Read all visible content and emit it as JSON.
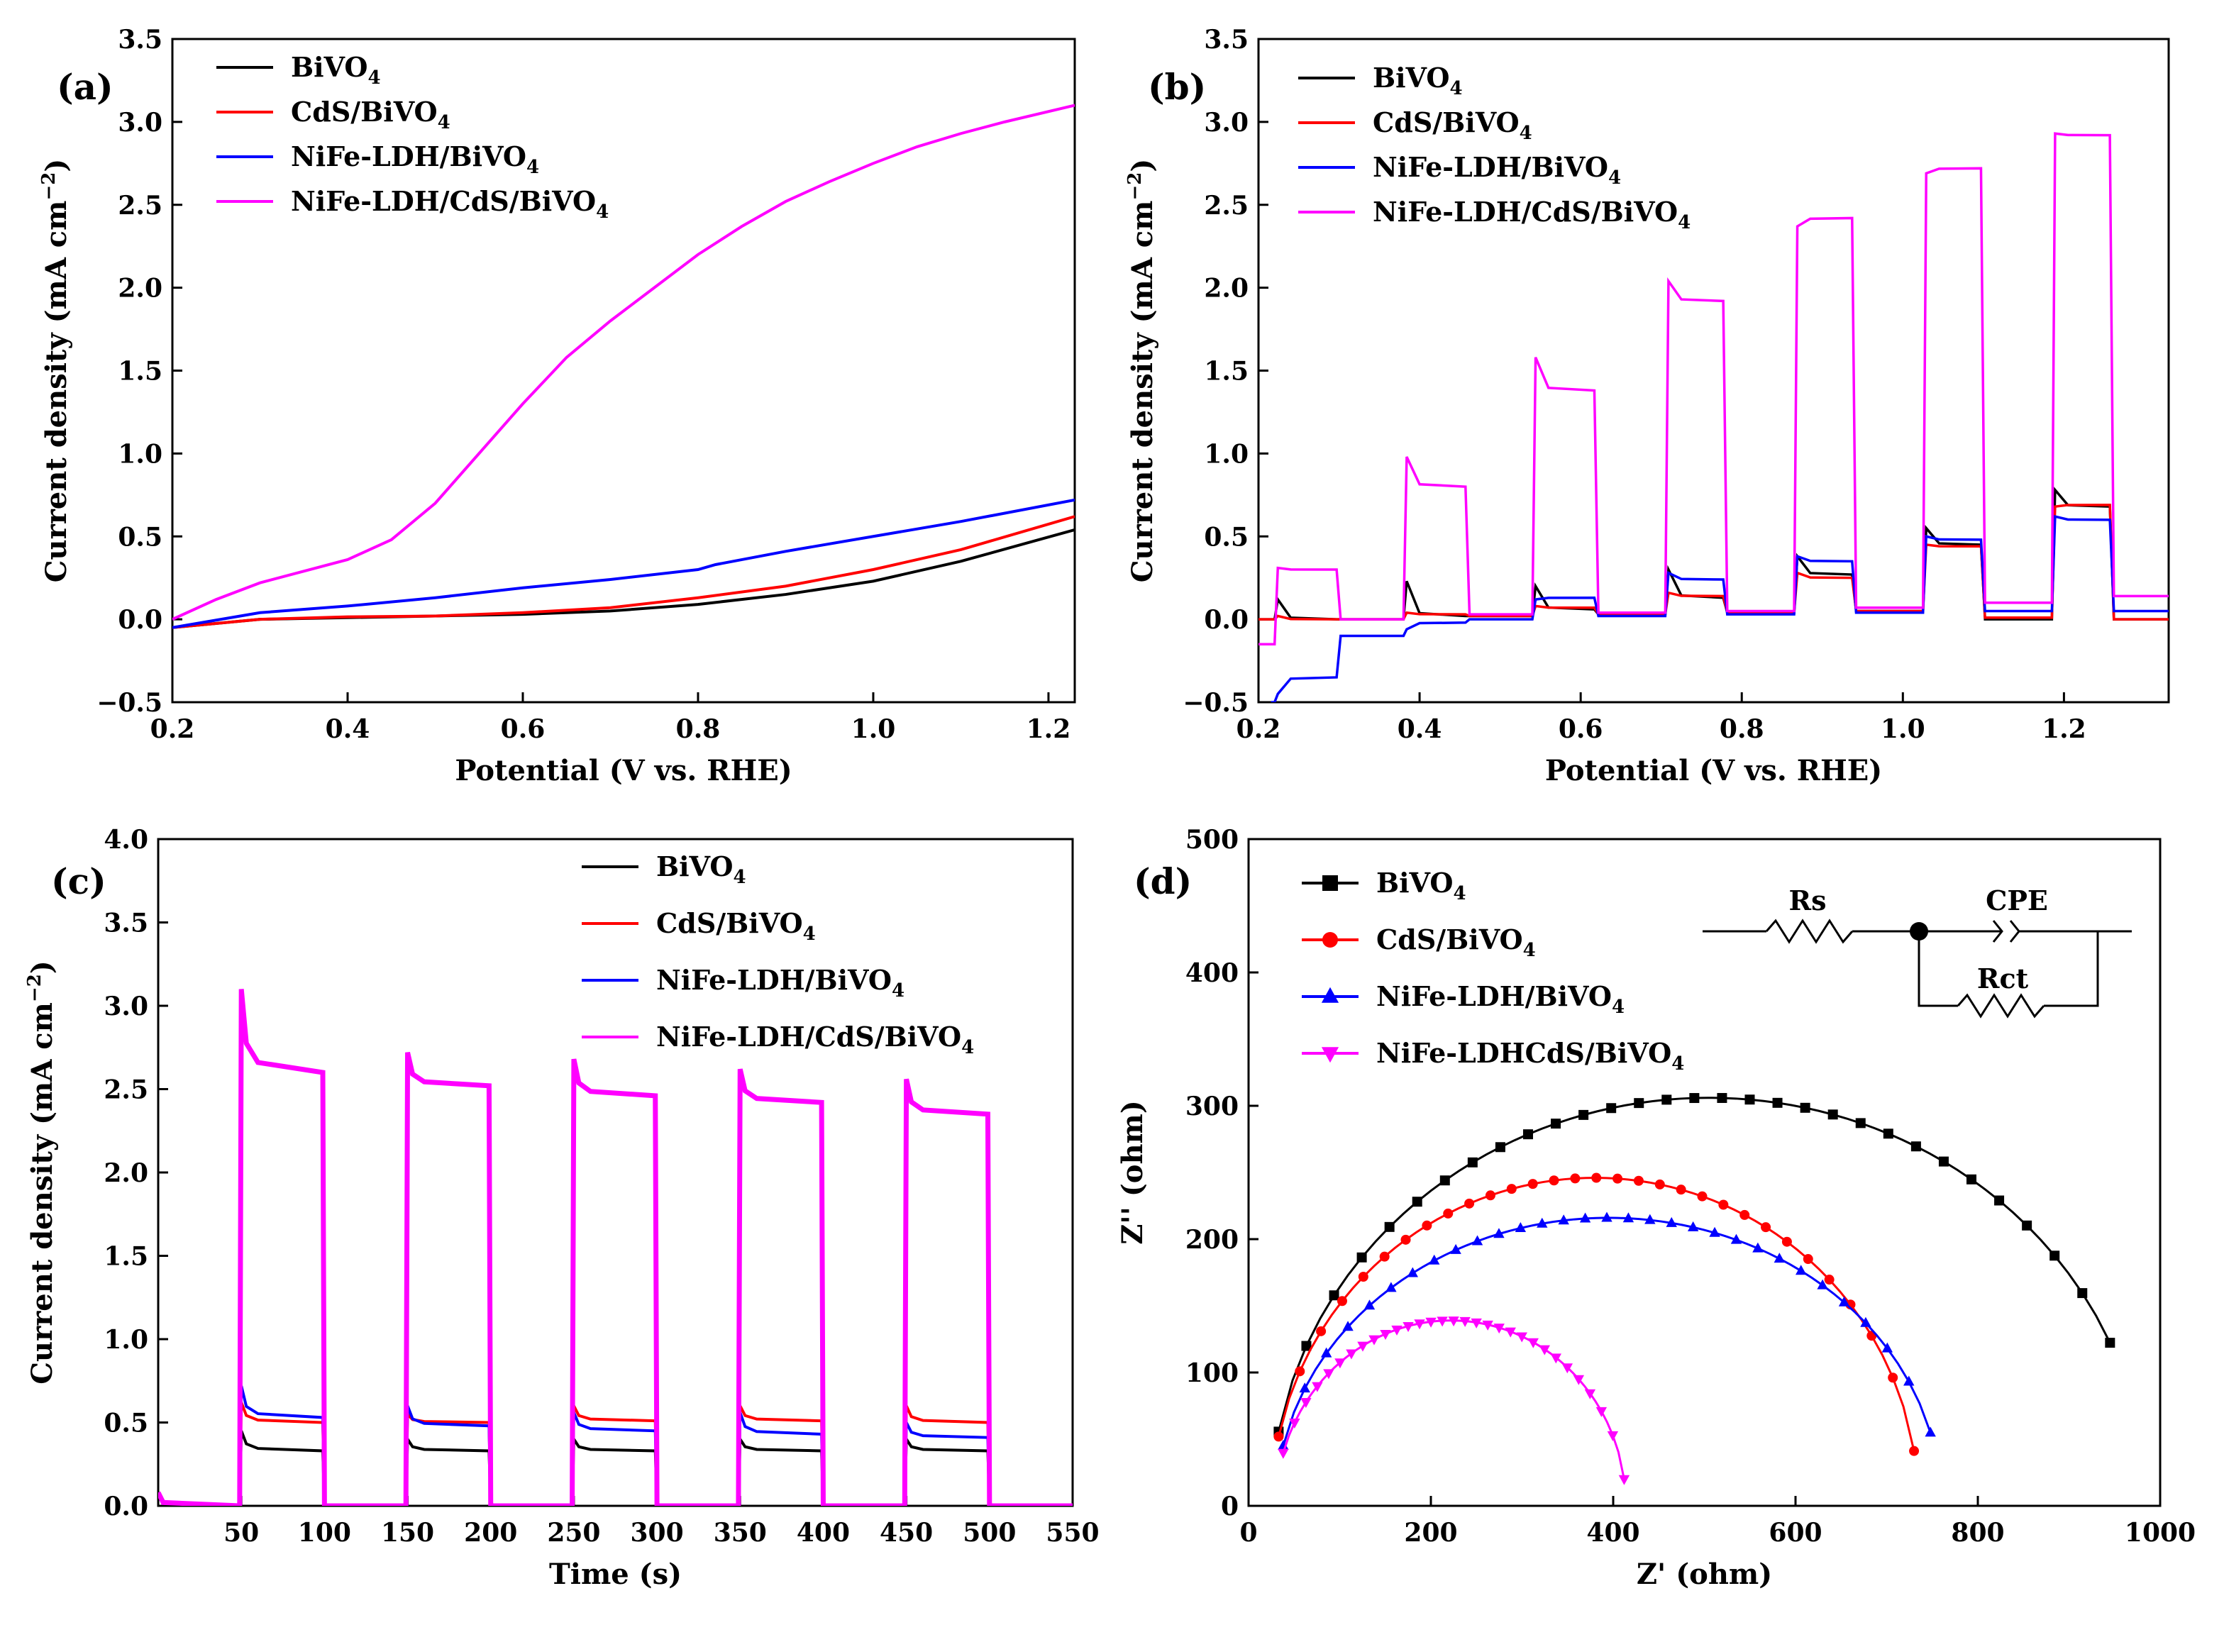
{
  "chart_data": [
    {
      "id": "a",
      "panel_label": "(a)",
      "type": "line",
      "xlabel": "Potential (V vs. RHE)",
      "ylabel": "Current density (mA cm−2)",
      "ylabel_main": "Current density (mA cm",
      "ylabel_sup": "−2",
      "ylabel_close": ")",
      "xlim": [
        0.2,
        1.23
      ],
      "ylim": [
        -0.5,
        3.5
      ],
      "xticks": [
        0.2,
        0.4,
        0.6,
        0.8,
        1.0,
        1.2
      ],
      "xtick_labels": [
        "0.2",
        "0.4",
        "0.6",
        "0.8",
        "1.0",
        "1.2"
      ],
      "yticks": [
        -0.5,
        0.0,
        0.5,
        1.0,
        1.5,
        2.0,
        2.5,
        3.0,
        3.5
      ],
      "ytick_labels": [
        "−0.5",
        "0.0",
        "0.5",
        "1.0",
        "1.5",
        "2.0",
        "2.5",
        "3.0",
        "3.5"
      ],
      "series": [
        {
          "name": "BiVO4",
          "color": "#000000",
          "x": [
            0.2,
            0.3,
            0.4,
            0.5,
            0.6,
            0.7,
            0.8,
            0.9,
            1.0,
            1.1,
            1.23
          ],
          "y": [
            -0.05,
            0.0,
            0.01,
            0.02,
            0.03,
            0.05,
            0.09,
            0.15,
            0.23,
            0.35,
            0.54
          ]
        },
        {
          "name": "CdS/BiVO4",
          "color": "#ff0000",
          "x": [
            0.2,
            0.3,
            0.4,
            0.5,
            0.6,
            0.7,
            0.8,
            0.9,
            1.0,
            1.1,
            1.23
          ],
          "y": [
            -0.05,
            0.0,
            0.015,
            0.02,
            0.04,
            0.07,
            0.13,
            0.2,
            0.3,
            0.42,
            0.62
          ]
        },
        {
          "name": "NiFe-LDH/BiVO4",
          "color": "#0000ff",
          "x": [
            0.2,
            0.3,
            0.4,
            0.5,
            0.6,
            0.7,
            0.8,
            0.82,
            0.9,
            1.0,
            1.1,
            1.23
          ],
          "y": [
            -0.05,
            0.04,
            0.08,
            0.13,
            0.19,
            0.24,
            0.3,
            0.33,
            0.41,
            0.5,
            0.59,
            0.72
          ]
        },
        {
          "name": "NiFe-LDH/CdS/BiVO4",
          "color": "#ff00ff",
          "x": [
            0.2,
            0.25,
            0.3,
            0.35,
            0.4,
            0.45,
            0.5,
            0.55,
            0.6,
            0.65,
            0.7,
            0.75,
            0.8,
            0.85,
            0.9,
            0.95,
            1.0,
            1.05,
            1.1,
            1.15,
            1.23
          ],
          "y": [
            0.0,
            0.12,
            0.22,
            0.29,
            0.36,
            0.48,
            0.7,
            1.0,
            1.3,
            1.58,
            1.8,
            2.0,
            2.2,
            2.37,
            2.52,
            2.64,
            2.75,
            2.85,
            2.93,
            3.0,
            3.1
          ]
        }
      ]
    },
    {
      "id": "b",
      "panel_label": "(b)",
      "type": "line",
      "xlabel": "Potential (V vs. RHE)",
      "ylabel": "Current density (mA cm−2)",
      "ylabel_main": "Current density (mA cm",
      "ylabel_sup": "−2",
      "ylabel_close": ")",
      "xlim": [
        0.2,
        1.33
      ],
      "ylim": [
        -0.5,
        3.5
      ],
      "xticks": [
        0.2,
        0.4,
        0.6,
        0.8,
        1.0,
        1.2
      ],
      "xtick_labels": [
        "0.2",
        "0.4",
        "0.6",
        "0.8",
        "1.0",
        "1.2"
      ],
      "yticks": [
        -0.5,
        0.0,
        0.5,
        1.0,
        1.5,
        2.0,
        2.5,
        3.0,
        3.5
      ],
      "ytick_labels": [
        "−0.5",
        "0.0",
        "0.5",
        "1.0",
        "1.5",
        "2.0",
        "2.5",
        "3.0",
        "3.5"
      ],
      "chopped": {
        "light_on": [
          0.22,
          0.38,
          0.54,
          0.705,
          0.865,
          1.025,
          1.185
        ],
        "light_off": [
          0.3,
          0.46,
          0.62,
          0.78,
          0.94,
          1.1,
          1.26
        ],
        "series": [
          {
            "name": "BiVO4",
            "color": "#000000",
            "dark": [
              0.0,
              0.0,
              0.02,
              0.03,
              0.04,
              0.05,
              0.0
            ],
            "spike": [
              0.12,
              0.23,
              0.2,
              0.3,
              0.38,
              0.55,
              0.78
            ],
            "plateau": [
              0.0,
              0.02,
              0.06,
              0.13,
              0.27,
              0.45,
              0.68
            ],
            "end": 0.0
          },
          {
            "name": "CdS/BiVO4",
            "color": "#ff0000",
            "dark": [
              0.0,
              0.0,
              0.02,
              0.03,
              0.04,
              0.05,
              0.01
            ],
            "spike": [
              0.02,
              0.04,
              0.08,
              0.16,
              0.28,
              0.45,
              0.68
            ],
            "plateau": [
              0.0,
              0.03,
              0.07,
              0.14,
              0.25,
              0.44,
              0.69
            ],
            "end": 0.0
          },
          {
            "name": "NiFe-LDH/BiVO4",
            "color": "#0000ff",
            "dark": [
              -0.5,
              -0.1,
              0.0,
              0.02,
              0.03,
              0.04,
              0.05
            ],
            "spike": [
              -0.45,
              -0.06,
              0.12,
              0.28,
              0.38,
              0.5,
              0.62
            ],
            "plateau": [
              -0.35,
              -0.02,
              0.13,
              0.24,
              0.35,
              0.48,
              0.6
            ],
            "end": 0.05
          },
          {
            "name": "NiFe-LDH/CdS/BiVO4",
            "color": "#ff00ff",
            "dark": [
              -0.15,
              0.0,
              0.03,
              0.04,
              0.05,
              0.07,
              0.1
            ],
            "spike": [
              0.31,
              0.98,
              1.58,
              2.04,
              2.37,
              2.69,
              2.93
            ],
            "plateau": [
              0.3,
              0.8,
              1.38,
              1.92,
              2.42,
              2.72,
              2.92
            ],
            "end": 0.14
          }
        ]
      }
    },
    {
      "id": "c",
      "panel_label": "(c)",
      "type": "line",
      "xlabel": "Time (s)",
      "ylabel": "Current density (mA cm−2)",
      "ylabel_main": "Current density (mA cm",
      "ylabel_sup": "−2",
      "ylabel_close": ")",
      "xlim": [
        0,
        550
      ],
      "ylim": [
        0.0,
        4.0
      ],
      "xticks": [
        50,
        100,
        150,
        200,
        250,
        300,
        350,
        400,
        450,
        500,
        550
      ],
      "xtick_labels": [
        "50",
        "100",
        "150",
        "200",
        "250",
        "300",
        "350",
        "400",
        "450",
        "500",
        "550"
      ],
      "yticks": [
        0.0,
        0.5,
        1.0,
        1.5,
        2.0,
        2.5,
        3.0,
        3.5,
        4.0
      ],
      "ytick_labels": [
        "0.0",
        "0.5",
        "1.0",
        "1.5",
        "2.0",
        "2.5",
        "3.0",
        "3.5",
        "4.0"
      ],
      "chopped": {
        "light_on": [
          50,
          150,
          250,
          350,
          450
        ],
        "light_off": [
          100,
          200,
          300,
          400,
          500
        ],
        "series": [
          {
            "name": "BiVO4",
            "color": "#000000",
            "spike": [
              0.45,
              0.4,
              0.4,
              0.4,
              0.4
            ],
            "plateau": [
              0.33,
              0.33,
              0.33,
              0.33,
              0.33
            ]
          },
          {
            "name": "CdS/BiVO4",
            "color": "#ff0000",
            "spike": [
              0.62,
              0.55,
              0.6,
              0.6,
              0.6
            ],
            "plateau": [
              0.5,
              0.5,
              0.51,
              0.51,
              0.5
            ]
          },
          {
            "name": "NiFe-LDH/BiVO4",
            "color": "#0000ff",
            "spike": [
              0.72,
              0.6,
              0.56,
              0.56,
              0.5
            ],
            "plateau": [
              0.53,
              0.48,
              0.45,
              0.43,
              0.41
            ]
          },
          {
            "name": "NiFe-LDH/CdS/BiVO4",
            "color": "#ff00ff",
            "spike": [
              3.1,
              2.72,
              2.68,
              2.62,
              2.56
            ],
            "plateau": [
              2.6,
              2.52,
              2.46,
              2.42,
              2.35
            ]
          }
        ]
      }
    },
    {
      "id": "d",
      "panel_label": "(d)",
      "type": "scatter",
      "xlabel": "Z' (ohm)",
      "ylabel": "Z'' (ohm)",
      "xlim": [
        0,
        1000
      ],
      "ylim": [
        0,
        500
      ],
      "xticks": [
        0,
        200,
        400,
        600,
        800,
        1000
      ],
      "xtick_labels": [
        "0",
        "200",
        "400",
        "600",
        "800",
        "1000"
      ],
      "yticks": [
        0,
        100,
        200,
        300,
        400,
        500
      ],
      "ytick_labels": [
        "0",
        "100",
        "200",
        "300",
        "400",
        "500"
      ],
      "series": [
        {
          "name": "BiVO4",
          "color": "#000000",
          "marker": "square",
          "center": 505,
          "radius": 480,
          "zmax": 306,
          "x_end": 945
        },
        {
          "name": "CdS/BiVO4",
          "color": "#ff0000",
          "marker": "circle",
          "center": 380,
          "radius": 355,
          "zmax": 246,
          "x_end": 730
        },
        {
          "name": "NiFe-LDH/BiVO4",
          "color": "#0000ff",
          "marker": "triangle-up",
          "center": 395,
          "radius": 365,
          "zmax": 216,
          "x_end": 748
        },
        {
          "name": "NiFe-LDHCdS/BiVO4",
          "color": "#ff00ff",
          "marker": "triangle-down",
          "center": 222,
          "radius": 192,
          "zmax": 139,
          "x_end": 412
        }
      ],
      "circuit": {
        "rs": "Rs",
        "cpe": "CPE",
        "rct": "Rct"
      }
    }
  ]
}
